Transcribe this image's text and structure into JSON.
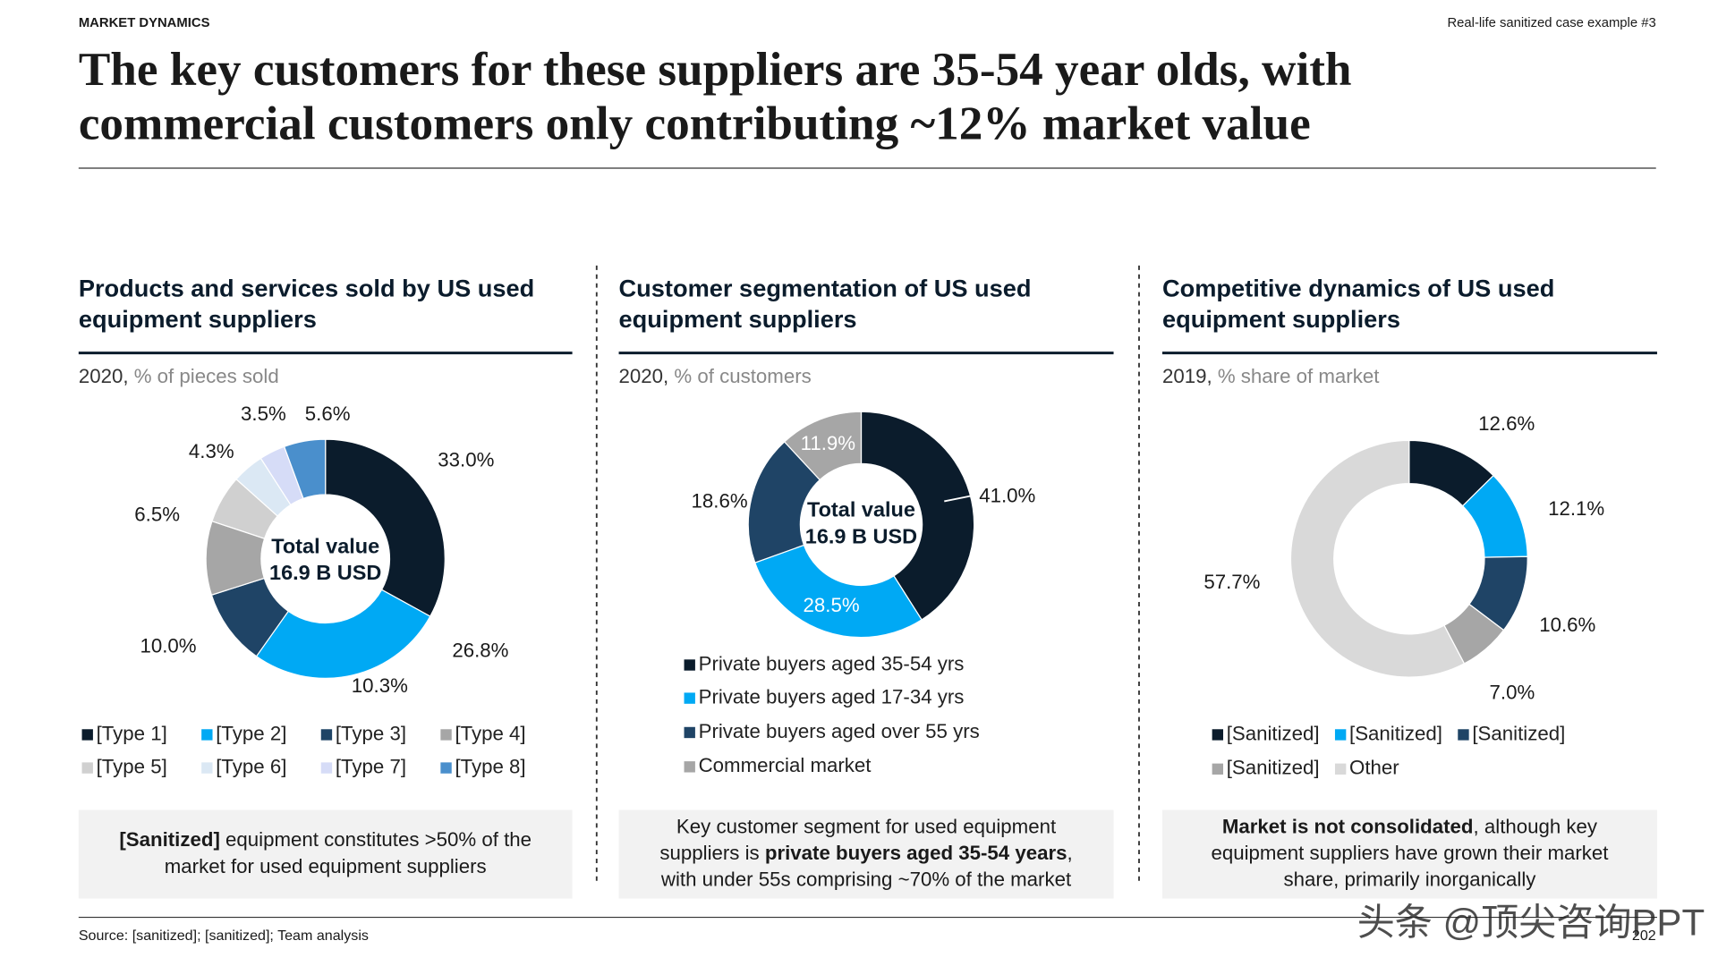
{
  "header": {
    "section": "MARKET DYNAMICS",
    "tag": "Real-life sanitized case example #3",
    "title_lines": [
      "The key customers for these suppliers are 35-54 year olds, with",
      "commercial customers only contributing ~12% market value"
    ]
  },
  "chart_data": [
    {
      "type": "donut",
      "title_lines": [
        "Products and services sold by US used",
        "equipment suppliers"
      ],
      "year": "2020,",
      "unit": "% of pieces sold",
      "center_lines": [
        "Total value",
        "16.9 B USD"
      ],
      "categories": [
        "[Type 1]",
        "[Type 2]",
        "[Type 3]",
        "[Type 4]",
        "[Type 5]",
        "[Type 6]",
        "[Type 7]",
        "[Type 8]"
      ],
      "values": [
        33.0,
        26.8,
        10.3,
        10.0,
        6.5,
        4.3,
        3.5,
        5.6
      ],
      "value_labels": [
        "33.0%",
        "26.8%",
        "10.3%",
        "10.0%",
        "6.5%",
        "4.3%",
        "3.5%",
        "5.6%"
      ],
      "colors": [
        "#0b1c2c",
        "#00a9f4",
        "#1f4466",
        "#a6a6a6",
        "#d0d0d0",
        "#dbe8f4",
        "#d6dcf7",
        "#4a8fcc"
      ]
    },
    {
      "type": "donut",
      "title_lines": [
        "Customer segmentation of US used",
        "equipment suppliers"
      ],
      "year": "2020,",
      "unit": "% of customers",
      "center_lines": [
        "Total value",
        "16.9 B USD"
      ],
      "categories": [
        "Private buyers aged 35-54 yrs",
        "Private buyers aged 17-34 yrs",
        "Private buyers aged over 55 yrs",
        "Commercial market"
      ],
      "values": [
        41.0,
        28.5,
        18.6,
        11.9
      ],
      "value_labels": [
        "41.0%",
        "28.5%",
        "18.6%",
        "11.9%"
      ],
      "colors": [
        "#0b1c2c",
        "#00a9f4",
        "#1f4466",
        "#a6a6a6"
      ]
    },
    {
      "type": "donut",
      "title_lines": [
        "Competitive dynamics of US used",
        "equipment suppliers"
      ],
      "year": "2019,",
      "unit": "% share of market",
      "categories": [
        "[Sanitized]",
        "[Sanitized]",
        "[Sanitized]",
        "[Sanitized]",
        "Other"
      ],
      "values": [
        12.6,
        12.1,
        10.6,
        7.0,
        57.7
      ],
      "value_labels": [
        "12.6%",
        "12.1%",
        "10.6%",
        "7.0%",
        "57.7%"
      ],
      "colors": [
        "#0b1c2c",
        "#00a9f4",
        "#1f4466",
        "#a6a6a6",
        "#d9d9d9"
      ]
    }
  ],
  "notes": [
    {
      "lines": [
        [
          {
            "text": "[Sanitized]",
            "bold": true
          },
          {
            "text": " equipment constitutes >50% of the",
            "bold": false
          }
        ],
        [
          {
            "text": "market for used equipment suppliers",
            "bold": false
          }
        ]
      ]
    },
    {
      "lines": [
        [
          {
            "text": "Key customer segment for used equipment",
            "bold": false
          }
        ],
        [
          {
            "text": "suppliers is ",
            "bold": false
          },
          {
            "text": "private buyers aged 35-54 years",
            "bold": true
          },
          {
            "text": ",",
            "bold": false
          }
        ],
        [
          {
            "text": "with under 55s comprising ~70% of the market",
            "bold": false
          }
        ]
      ]
    },
    {
      "lines": [
        [
          {
            "text": "Market is not consolidated",
            "bold": true
          },
          {
            "text": ", although key",
            "bold": false
          }
        ],
        [
          {
            "text": "equipment suppliers have grown their market",
            "bold": false
          }
        ],
        [
          {
            "text": "share, primarily inorganically",
            "bold": false
          }
        ]
      ]
    }
  ],
  "footer": {
    "source": "Source: [sanitized]; [sanitized]; Team analysis",
    "page": "202",
    "watermark": "头条 @顶尖咨询PPT"
  }
}
